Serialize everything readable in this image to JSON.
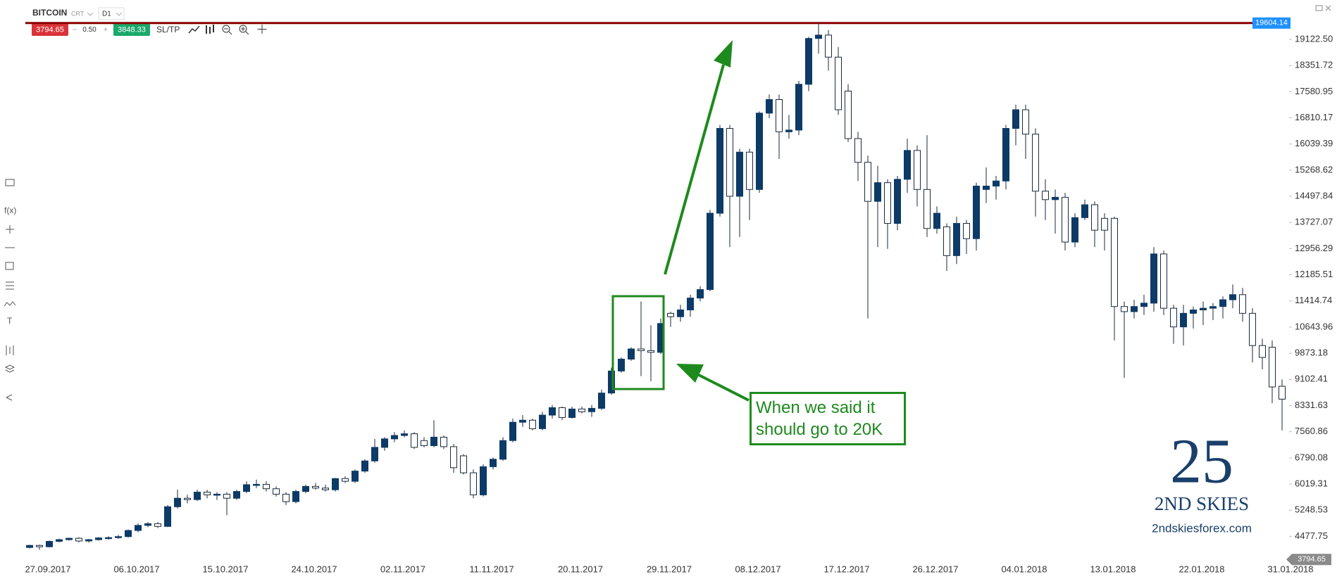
{
  "toolbar": {
    "symbol": "BITCOIN",
    "account": "CRT",
    "timeframe": "D1",
    "spread": "0.50",
    "buy": "3848.33",
    "sltp": "SL/TP"
  },
  "sidebar": {
    "function": "f(x)",
    "text_tool": "T"
  },
  "logo": {
    "mark": "25",
    "name": "2ND SKIES",
    "url": "2ndskiesforex.com"
  },
  "chart_data": {
    "type": "candlestick",
    "annotation": "When we said it should go to 20K",
    "up_color": "#0d3a66",
    "down_color": "#ffffff",
    "current_price": 3794.65,
    "high_line": 19604.14,
    "high_line_color": "#8b0000",
    "ylim": [
      3780,
      19724
    ],
    "yticks": [
      {
        "value": 19122.5,
        "label": "19122.50"
      },
      18351.72,
      17580.95,
      16810.17,
      16039.39,
      15268.62,
      14497.84,
      13727.07,
      12956.29,
      12185.51,
      11414.74,
      10643.96,
      9873.18,
      9102.41,
      8331.63,
      7560.86,
      6790.08,
      6019.31,
      5248.53,
      4477.75
    ],
    "categories": [
      null,
      "27.09.2017",
      null,
      null,
      null,
      null,
      null,
      null,
      null,
      null,
      "06.10.2017",
      null,
      null,
      null,
      null,
      null,
      null,
      null,
      null,
      "15.10.2017",
      null,
      null,
      null,
      null,
      null,
      null,
      null,
      null,
      "24.10.2017",
      null,
      null,
      null,
      null,
      null,
      null,
      null,
      null,
      "02.11.2017",
      null,
      null,
      null,
      null,
      null,
      null,
      null,
      null,
      "11.11.2017",
      null,
      null,
      null,
      null,
      null,
      null,
      null,
      null,
      "20.11.2017",
      null,
      null,
      null,
      null,
      null,
      null,
      null,
      null,
      "29.11.2017",
      null,
      null,
      null,
      null,
      null,
      null,
      null,
      null,
      "08.12.2017",
      null,
      null,
      null,
      null,
      null,
      null,
      null,
      null,
      "17.12.2017",
      null,
      null,
      null,
      null,
      null,
      null,
      null,
      null,
      "26.12.2017",
      null,
      null,
      null,
      null,
      null,
      null,
      null,
      null,
      "04.01.2018",
      null,
      null,
      null,
      null,
      null,
      null,
      null,
      null,
      "13.01.2018",
      null,
      null,
      null,
      null,
      null,
      null,
      null,
      null,
      "22.01.2018",
      null,
      null,
      null,
      null,
      null,
      null,
      null,
      null,
      "31.01.2018"
    ],
    "open": [
      4150,
      4210,
      4170,
      4330,
      4380,
      4420,
      4340,
      4380,
      4430,
      4440,
      4470,
      4650,
      4800,
      4850,
      4770,
      5350,
      5600,
      5560,
      5780,
      5700,
      5720,
      5600,
      5800,
      5980,
      6010,
      5880,
      5720,
      5500,
      5800,
      5950,
      5900,
      5850,
      6180,
      6100,
      6400,
      6700,
      7100,
      7350,
      7450,
      7500,
      7300,
      7150,
      7400,
      7120,
      6850,
      6350,
      5700,
      6530,
      6750,
      7300,
      7840,
      7900,
      7650,
      8050,
      8270,
      7980,
      8230,
      8150,
      8250,
      8700,
      9350,
      9700,
      10000,
      9950,
      9900,
      11050,
      10950,
      11150,
      11500,
      11750,
      14000,
      16500,
      14500,
      15800,
      14700,
      16950,
      17350,
      16400,
      16450,
      17800,
      19150,
      19250,
      18600,
      17600,
      16200,
      15500,
      14350,
      14900,
      13700,
      15000,
      15850,
      14700,
      13550,
      13600,
      12750,
      13700,
      13250,
      14700,
      14800,
      14950,
      16500,
      17050,
      16330,
      14650,
      14400,
      14470,
      13150,
      13870,
      14250,
      13850,
      13850,
      11250,
      11100,
      11250,
      11350,
      12800,
      11200,
      10650,
      11050,
      11150,
      11200,
      11250,
      11450,
      11600,
      11050,
      10100,
      10050,
      8900
    ],
    "high": [
      4230,
      4230,
      4350,
      4410,
      4440,
      4450,
      4400,
      4460,
      4480,
      4520,
      4680,
      4860,
      4900,
      4900,
      5400,
      5850,
      5700,
      5850,
      5850,
      5780,
      5780,
      5850,
      6100,
      6150,
      6100,
      5950,
      5780,
      5850,
      6000,
      6050,
      6000,
      6200,
      6250,
      6450,
      6750,
      7350,
      7400,
      7550,
      7600,
      7550,
      7400,
      7900,
      7450,
      7200,
      6900,
      6450,
      6600,
      6800,
      7400,
      7950,
      8050,
      7950,
      8150,
      8350,
      8300,
      8300,
      8300,
      8350,
      8800,
      9450,
      9750,
      10050,
      11400,
      10700,
      10900,
      11100,
      11300,
      11600,
      11850,
      14100,
      16600,
      16600,
      15900,
      15900,
      17000,
      17500,
      17500,
      16900,
      17900,
      19200,
      19600,
      19400,
      18900,
      17800,
      16400,
      15700,
      15400,
      15000,
      15100,
      16200,
      16000,
      16300,
      14200,
      13700,
      13900,
      13800,
      14900,
      15350,
      15100,
      16600,
      17200,
      17200,
      16500,
      15000,
      14700,
      14600,
      14000,
      14400,
      14350,
      14000,
      13900,
      11400,
      11450,
      11600,
      13000,
      12900,
      11300,
      11300,
      11250,
      11400,
      11350,
      11550,
      11900,
      11800,
      11200,
      10300,
      10250,
      9100
    ],
    "low": [
      4120,
      4080,
      4150,
      4300,
      4350,
      4300,
      4290,
      4350,
      4380,
      4400,
      4440,
      4600,
      4750,
      4720,
      4750,
      5300,
      5450,
      5520,
      5600,
      5550,
      5100,
      5550,
      5750,
      5900,
      5800,
      5650,
      5400,
      5450,
      5750,
      5850,
      5800,
      5800,
      6050,
      6050,
      6350,
      6650,
      7000,
      7250,
      7400,
      7050,
      7100,
      7100,
      7050,
      6350,
      6300,
      5600,
      5650,
      6450,
      6700,
      7250,
      7700,
      7600,
      7600,
      7950,
      7900,
      7950,
      8100,
      8000,
      8200,
      8650,
      9300,
      9650,
      9200,
      9050,
      9850,
      10650,
      10800,
      10950,
      11400,
      11700,
      13900,
      13000,
      13300,
      13800,
      14600,
      16800,
      15600,
      16200,
      16300,
      17600,
      18700,
      18200,
      16900,
      16100,
      14950,
      10900,
      13000,
      12950,
      13500,
      14600,
      14200,
      13300,
      13400,
      12300,
      12500,
      12800,
      12900,
      14300,
      14400,
      14700,
      16000,
      15600,
      13900,
      13800,
      13400,
      12900,
      13000,
      13800,
      13000,
      12900,
      10250,
      9150,
      10900,
      11000,
      11100,
      11000,
      10150,
      10100,
      10600,
      10700,
      10850,
      10900,
      11200,
      10800,
      9600,
      9400,
      8400,
      7600
    ],
    "close": [
      4210,
      4170,
      4330,
      4380,
      4420,
      4340,
      4380,
      4430,
      4440,
      4470,
      4650,
      4800,
      4850,
      4770,
      5350,
      5600,
      5560,
      5780,
      5700,
      5720,
      5600,
      5800,
      6000,
      6010,
      5880,
      5720,
      5500,
      5800,
      5950,
      5900,
      5850,
      6180,
      6100,
      6400,
      6700,
      7100,
      7350,
      7450,
      7500,
      7100,
      7150,
      7400,
      7120,
      6500,
      6350,
      5700,
      6530,
      6750,
      7300,
      7840,
      7900,
      7650,
      8050,
      8270,
      7980,
      8230,
      8150,
      8250,
      8700,
      9350,
      9700,
      10000,
      9950,
      9900,
      10750,
      10950,
      11150,
      11500,
      11750,
      14000,
      16500,
      14500,
      15800,
      14700,
      16950,
      17350,
      16400,
      16450,
      17800,
      19150,
      19250,
      18600,
      17050,
      16200,
      15500,
      14350,
      14900,
      13700,
      15000,
      15850,
      14700,
      13550,
      14000,
      12750,
      13700,
      13250,
      14800,
      14800,
      14950,
      16500,
      17050,
      16330,
      14650,
      14400,
      14470,
      13150,
      13870,
      14250,
      13500,
      13500,
      11250,
      11100,
      11250,
      11350,
      12800,
      11200,
      10650,
      11050,
      11150,
      11200,
      11250,
      11450,
      11600,
      11050,
      10100,
      9750,
      8880,
      8520
    ]
  }
}
